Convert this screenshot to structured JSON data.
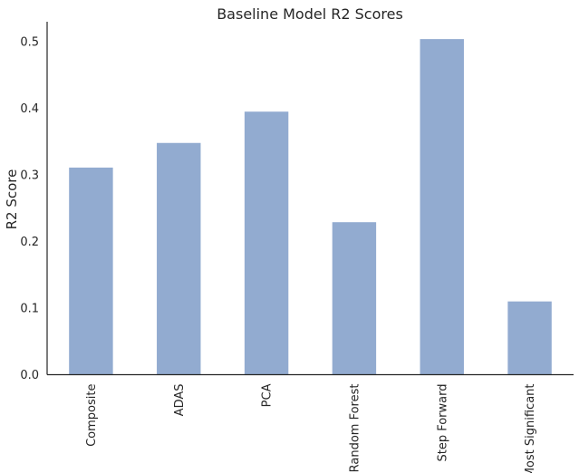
{
  "chart_data": {
    "type": "bar",
    "title": "Baseline Model R2 Scores",
    "xlabel": "",
    "ylabel": "R2 Score",
    "categories": [
      "Composite",
      "ADAS",
      "PCA",
      "Random Forest",
      "Step Forward",
      "Most Significant"
    ],
    "values": [
      0.311,
      0.348,
      0.395,
      0.229,
      0.504,
      0.11
    ],
    "ylim": [
      0,
      0.53
    ],
    "yticks": [
      "0.0",
      "0.1",
      "0.2",
      "0.3",
      "0.4",
      "0.5"
    ],
    "grid": false,
    "bar_color": "#92abd0",
    "axis_color": "#262626"
  }
}
